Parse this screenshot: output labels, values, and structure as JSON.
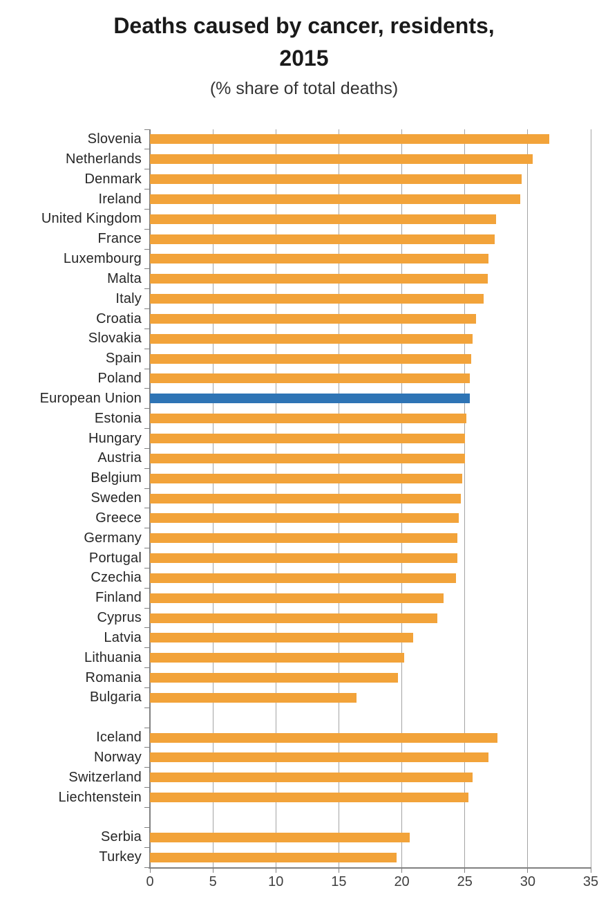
{
  "chart_data": {
    "type": "bar",
    "orientation": "horizontal",
    "title": "Deaths caused by cancer, residents, 2015",
    "title_lines": [
      "Deaths caused by cancer, residents,",
      "2015"
    ],
    "subtitle": "(% share of total deaths)",
    "xlabel": "",
    "ylabel": "",
    "xlim": [
      0,
      35
    ],
    "x_ticks": [
      0,
      5,
      10,
      15,
      20,
      25,
      30,
      35
    ],
    "grid": true,
    "legend": "none",
    "bar_colors": {
      "default": "#F2A33A",
      "highlight": "#2E74B5"
    },
    "axis_colors": {
      "gridline": "#A3A3A3",
      "axis_line": "#808080",
      "tick_label": "#3F3F3F",
      "category_label": "#262626"
    },
    "groups": [
      {
        "name": "eu-members-and-aggregate",
        "rows": [
          {
            "label": "Slovenia",
            "value": 31.7
          },
          {
            "label": "Netherlands",
            "value": 30.4
          },
          {
            "label": "Denmark",
            "value": 29.5
          },
          {
            "label": "Ireland",
            "value": 29.4
          },
          {
            "label": "United Kingdom",
            "value": 27.5
          },
          {
            "label": "France",
            "value": 27.4
          },
          {
            "label": "Luxembourg",
            "value": 26.9
          },
          {
            "label": "Malta",
            "value": 26.8
          },
          {
            "label": "Italy",
            "value": 26.5
          },
          {
            "label": "Croatia",
            "value": 25.9
          },
          {
            "label": "Slovakia",
            "value": 25.6
          },
          {
            "label": "Spain",
            "value": 25.5
          },
          {
            "label": "Poland",
            "value": 25.4
          },
          {
            "label": "European Union",
            "value": 25.4,
            "highlight": true
          },
          {
            "label": "Estonia",
            "value": 25.1
          },
          {
            "label": "Hungary",
            "value": 25.0
          },
          {
            "label": "Austria",
            "value": 25.0
          },
          {
            "label": "Belgium",
            "value": 24.8
          },
          {
            "label": "Sweden",
            "value": 24.7
          },
          {
            "label": "Greece",
            "value": 24.5
          },
          {
            "label": "Germany",
            "value": 24.4
          },
          {
            "label": "Portugal",
            "value": 24.4
          },
          {
            "label": "Czechia",
            "value": 24.3
          },
          {
            "label": "Finland",
            "value": 23.3
          },
          {
            "label": "Cyprus",
            "value": 22.8
          },
          {
            "label": "Latvia",
            "value": 20.9
          },
          {
            "label": "Lithuania",
            "value": 20.2
          },
          {
            "label": "Romania",
            "value": 19.7
          },
          {
            "label": "Bulgaria",
            "value": 16.4
          }
        ]
      },
      {
        "name": "efta-countries",
        "rows": [
          {
            "label": "Iceland",
            "value": 27.6
          },
          {
            "label": "Norway",
            "value": 26.9
          },
          {
            "label": "Switzerland",
            "value": 25.6
          },
          {
            "label": "Liechtenstein",
            "value": 25.3
          }
        ]
      },
      {
        "name": "candidate-countries",
        "rows": [
          {
            "label": "Serbia",
            "value": 20.6
          },
          {
            "label": "Turkey",
            "value": 19.6
          }
        ]
      }
    ]
  }
}
